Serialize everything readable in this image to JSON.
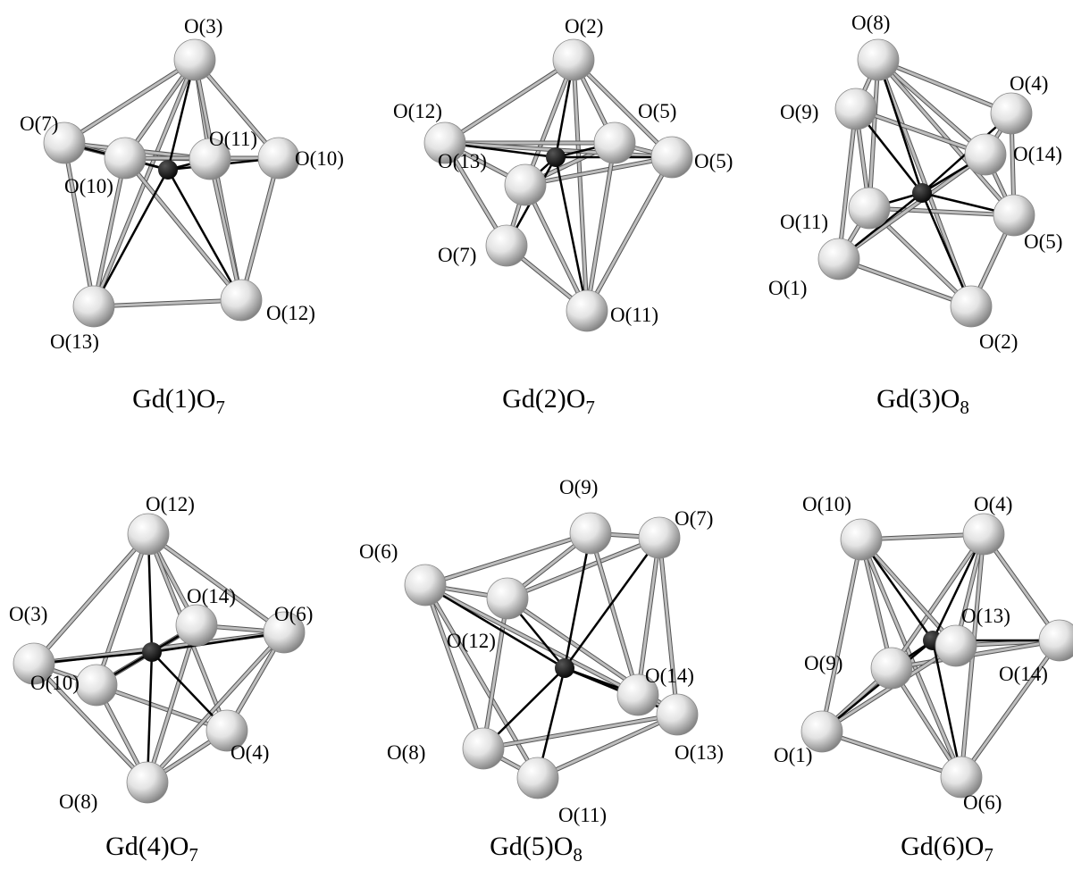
{
  "colors": {
    "background": "#ffffff",
    "oxygen_atom": "#d9d9d9",
    "gadolinium_atom": "#000000",
    "gd_o_bond": "#000000",
    "o_o_edge": "#bdbdbd"
  },
  "polyhedra": [
    {
      "id": "gd1",
      "caption": {
        "main": "Gd(1)O",
        "sub": "7"
      },
      "labels": [
        "O(3)",
        "O(7)",
        "O(11)",
        "O(10)",
        "O(10)",
        "O(12)",
        "O(13)"
      ]
    },
    {
      "id": "gd2",
      "caption": {
        "main": "Gd(2)O",
        "sub": "7"
      },
      "labels": [
        "O(2)",
        "O(12)",
        "O(5)",
        "O(13)",
        "O(5)",
        "O(7)",
        "O(11)"
      ]
    },
    {
      "id": "gd3",
      "caption": {
        "main": "Gd(3)O",
        "sub": "8"
      },
      "labels": [
        "O(8)",
        "O(4)",
        "O(9)",
        "O(14)",
        "O(11)",
        "O(5)",
        "O(1)",
        "O(2)"
      ]
    },
    {
      "id": "gd4",
      "caption": {
        "main": "Gd(4)O",
        "sub": "7"
      },
      "labels": [
        "O(12)",
        "O(14)",
        "O(3)",
        "O(6)",
        "O(10)",
        "O(4)",
        "O(8)"
      ]
    },
    {
      "id": "gd5",
      "caption": {
        "main": "Gd(5)O",
        "sub": "8"
      },
      "labels": [
        "O(9)",
        "O(7)",
        "O(6)",
        "O(12)",
        "O(14)",
        "O(8)",
        "O(13)",
        "O(11)"
      ]
    },
    {
      "id": "gd6",
      "caption": {
        "main": "Gd(6)O",
        "sub": "7"
      },
      "labels": [
        "O(10)",
        "O(4)",
        "O(13)",
        "O(9)",
        "O(14)",
        "O(1)",
        "O(6)"
      ]
    }
  ]
}
